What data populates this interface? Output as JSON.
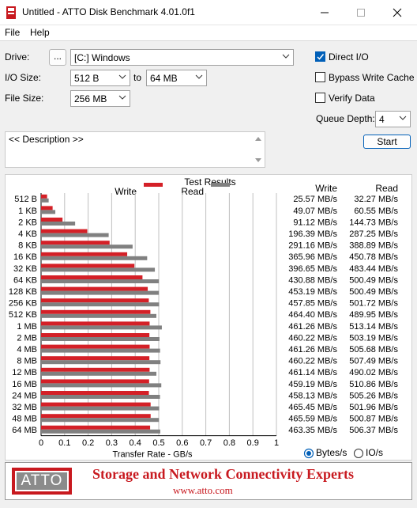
{
  "window": {
    "title": "Untitled - ATTO Disk Benchmark 4.01.0f1",
    "app_icon": "atto-app-icon",
    "controls": [
      "minimize-icon",
      "maximize-icon",
      "close-icon"
    ]
  },
  "menu": {
    "file": "File",
    "help": "Help"
  },
  "settings": {
    "drive_label": "Drive:",
    "browse_label": "...",
    "drive_value": "[C:] Windows",
    "io_size_label": "I/O Size:",
    "io_from": "512 B",
    "to_label": "to",
    "io_to": "64 MB",
    "file_size_label": "File Size:",
    "file_size": "256 MB",
    "direct_io_label": "Direct I/O",
    "direct_io_checked": true,
    "bypass_label": "Bypass Write Cache",
    "bypass_checked": false,
    "verify_label": "Verify Data",
    "verify_checked": false,
    "queue_depth_label": "Queue Depth:",
    "queue_depth": "4",
    "start_label": "Start",
    "description": "<< Description >>"
  },
  "results": {
    "title": "Test Results",
    "write_legend": "Write",
    "read_legend": "Read",
    "write_header": "Write",
    "read_header": "Read",
    "units_bytes": "Bytes/s",
    "units_io": "IO/s",
    "units_selected": "bytes",
    "write_values_text": [
      "25.57 MB/s",
      "49.07 MB/s",
      "91.12 MB/s",
      "196.39 MB/s",
      "291.16 MB/s",
      "365.96 MB/s",
      "396.65 MB/s",
      "430.88 MB/s",
      "453.19 MB/s",
      "457.85 MB/s",
      "464.40 MB/s",
      "461.26 MB/s",
      "460.22 MB/s",
      "461.26 MB/s",
      "460.22 MB/s",
      "461.14 MB/s",
      "459.19 MB/s",
      "458.13 MB/s",
      "465.45 MB/s",
      "465.59 MB/s",
      "463.35 MB/s"
    ],
    "read_values_text": [
      "32.27 MB/s",
      "60.55 MB/s",
      "144.73 MB/s",
      "287.25 MB/s",
      "388.89 MB/s",
      "450.78 MB/s",
      "483.44 MB/s",
      "500.49 MB/s",
      "500.49 MB/s",
      "501.72 MB/s",
      "489.95 MB/s",
      "513.14 MB/s",
      "503.19 MB/s",
      "505.68 MB/s",
      "507.49 MB/s",
      "490.02 MB/s",
      "510.86 MB/s",
      "505.26 MB/s",
      "501.96 MB/s",
      "500.87 MB/s",
      "506.37 MB/s"
    ]
  },
  "footer": {
    "logo": "ATTO",
    "tagline": "Storage and Network Connectivity Experts",
    "url": "www.atto.com"
  },
  "chart_data": {
    "type": "bar",
    "orientation": "horizontal",
    "xlabel": "Transfer Rate - GB/s",
    "xlim": [
      0,
      1
    ],
    "xticks": [
      "0",
      "0.1",
      "0.2",
      "0.3",
      "0.4",
      "0.5",
      "0.6",
      "0.7",
      "0.8",
      "0.9",
      "1"
    ],
    "grid": true,
    "categories": [
      "512 B",
      "1 KB",
      "2 KB",
      "4 KB",
      "8 KB",
      "16 KB",
      "32 KB",
      "64 KB",
      "128 KB",
      "256 KB",
      "512 KB",
      "1 MB",
      "2 MB",
      "4 MB",
      "8 MB",
      "12 MB",
      "16 MB",
      "24 MB",
      "32 MB",
      "48 MB",
      "64 MB"
    ],
    "series": [
      {
        "name": "Write",
        "color": "#d42027",
        "values": [
          0.02557,
          0.04907,
          0.09112,
          0.19639,
          0.29116,
          0.36596,
          0.39665,
          0.43088,
          0.45319,
          0.45785,
          0.4644,
          0.46126,
          0.46022,
          0.46126,
          0.46022,
          0.46114,
          0.45919,
          0.45813,
          0.46545,
          0.46559,
          0.46335
        ]
      },
      {
        "name": "Read",
        "color": "#808080",
        "values": [
          0.03227,
          0.06055,
          0.14473,
          0.28725,
          0.38889,
          0.45078,
          0.48344,
          0.50049,
          0.50049,
          0.50172,
          0.48995,
          0.51314,
          0.50319,
          0.50568,
          0.50749,
          0.49002,
          0.51086,
          0.50526,
          0.50196,
          0.50087,
          0.50637
        ]
      }
    ]
  }
}
